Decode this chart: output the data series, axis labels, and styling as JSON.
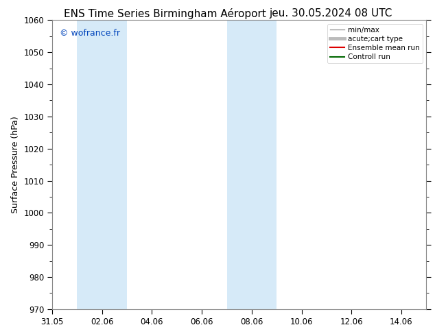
{
  "title_left": "ENS Time Series Birmingham Aéroport",
  "title_right": "jeu. 30.05.2024 08 UTC",
  "ylabel": "Surface Pressure (hPa)",
  "ylim": [
    970,
    1060
  ],
  "yticks": [
    970,
    980,
    990,
    1000,
    1010,
    1020,
    1030,
    1040,
    1050,
    1060
  ],
  "xlim": [
    0,
    15
  ],
  "xtick_labels": [
    "31.05",
    "02.06",
    "04.06",
    "06.06",
    "08.06",
    "10.06",
    "12.06",
    "14.06"
  ],
  "xtick_positions": [
    0,
    2,
    4,
    6,
    8,
    10,
    12,
    14
  ],
  "shaded_bands": [
    {
      "start": 1,
      "end": 3
    },
    {
      "start": 7,
      "end": 9
    }
  ],
  "shaded_color": "#d6eaf8",
  "bg_color": "#ffffff",
  "watermark": "© wofrance.fr",
  "watermark_color": "#0044bb",
  "legend_entries": [
    {
      "label": "min/max",
      "color": "#999999",
      "lw": 1.0
    },
    {
      "label": "acute;cart type",
      "color": "#bbbbbb",
      "lw": 3.5
    },
    {
      "label": "Ensemble mean run",
      "color": "#dd0000",
      "lw": 1.5
    },
    {
      "label": "Controll run",
      "color": "#006600",
      "lw": 1.5
    }
  ],
  "spine_color": "#888888",
  "title_fontsize": 11,
  "label_fontsize": 9,
  "tick_fontsize": 8.5,
  "watermark_fontsize": 9,
  "legend_fontsize": 7.5
}
